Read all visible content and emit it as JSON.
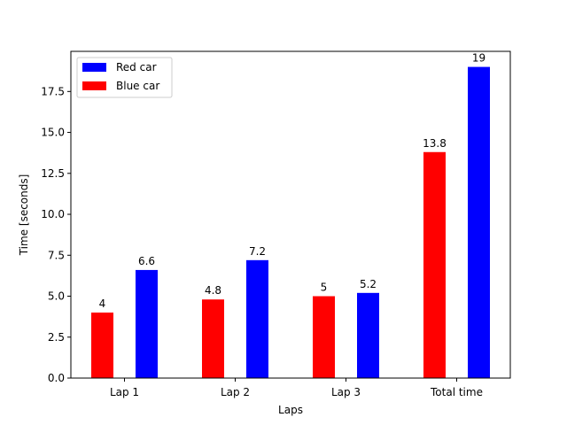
{
  "chart_data": {
    "type": "bar",
    "title": "",
    "xlabel": "Laps",
    "ylabel": "Time [seconds]",
    "categories": [
      "Lap 1",
      "Lap 2",
      "Lap 3",
      "Total time"
    ],
    "series": [
      {
        "name": "Blue car",
        "color": "#ff0000",
        "values": [
          4,
          4.8,
          5,
          13.8
        ]
      },
      {
        "name": "Red car",
        "color": "#0000ff",
        "values": [
          6.6,
          7.2,
          5.2,
          19
        ]
      }
    ],
    "data_labels": [
      [
        "4",
        "4.8",
        "5",
        "13.8"
      ],
      [
        "6.6",
        "7.2",
        "5.2",
        "19"
      ]
    ],
    "ylim": [
      0,
      19.95
    ],
    "yticks": [
      0.0,
      2.5,
      5.0,
      7.5,
      10.0,
      12.5,
      15.0,
      17.5
    ],
    "ytick_labels": [
      "0.0",
      "2.5",
      "5.0",
      "7.5",
      "10.0",
      "12.5",
      "15.0",
      "17.5"
    ],
    "grid": false,
    "legend": {
      "placement": "top-left",
      "entries": [
        {
          "label": "Red car",
          "color": "#0000ff"
        },
        {
          "label": "Blue car",
          "color": "#ff0000"
        }
      ]
    }
  }
}
